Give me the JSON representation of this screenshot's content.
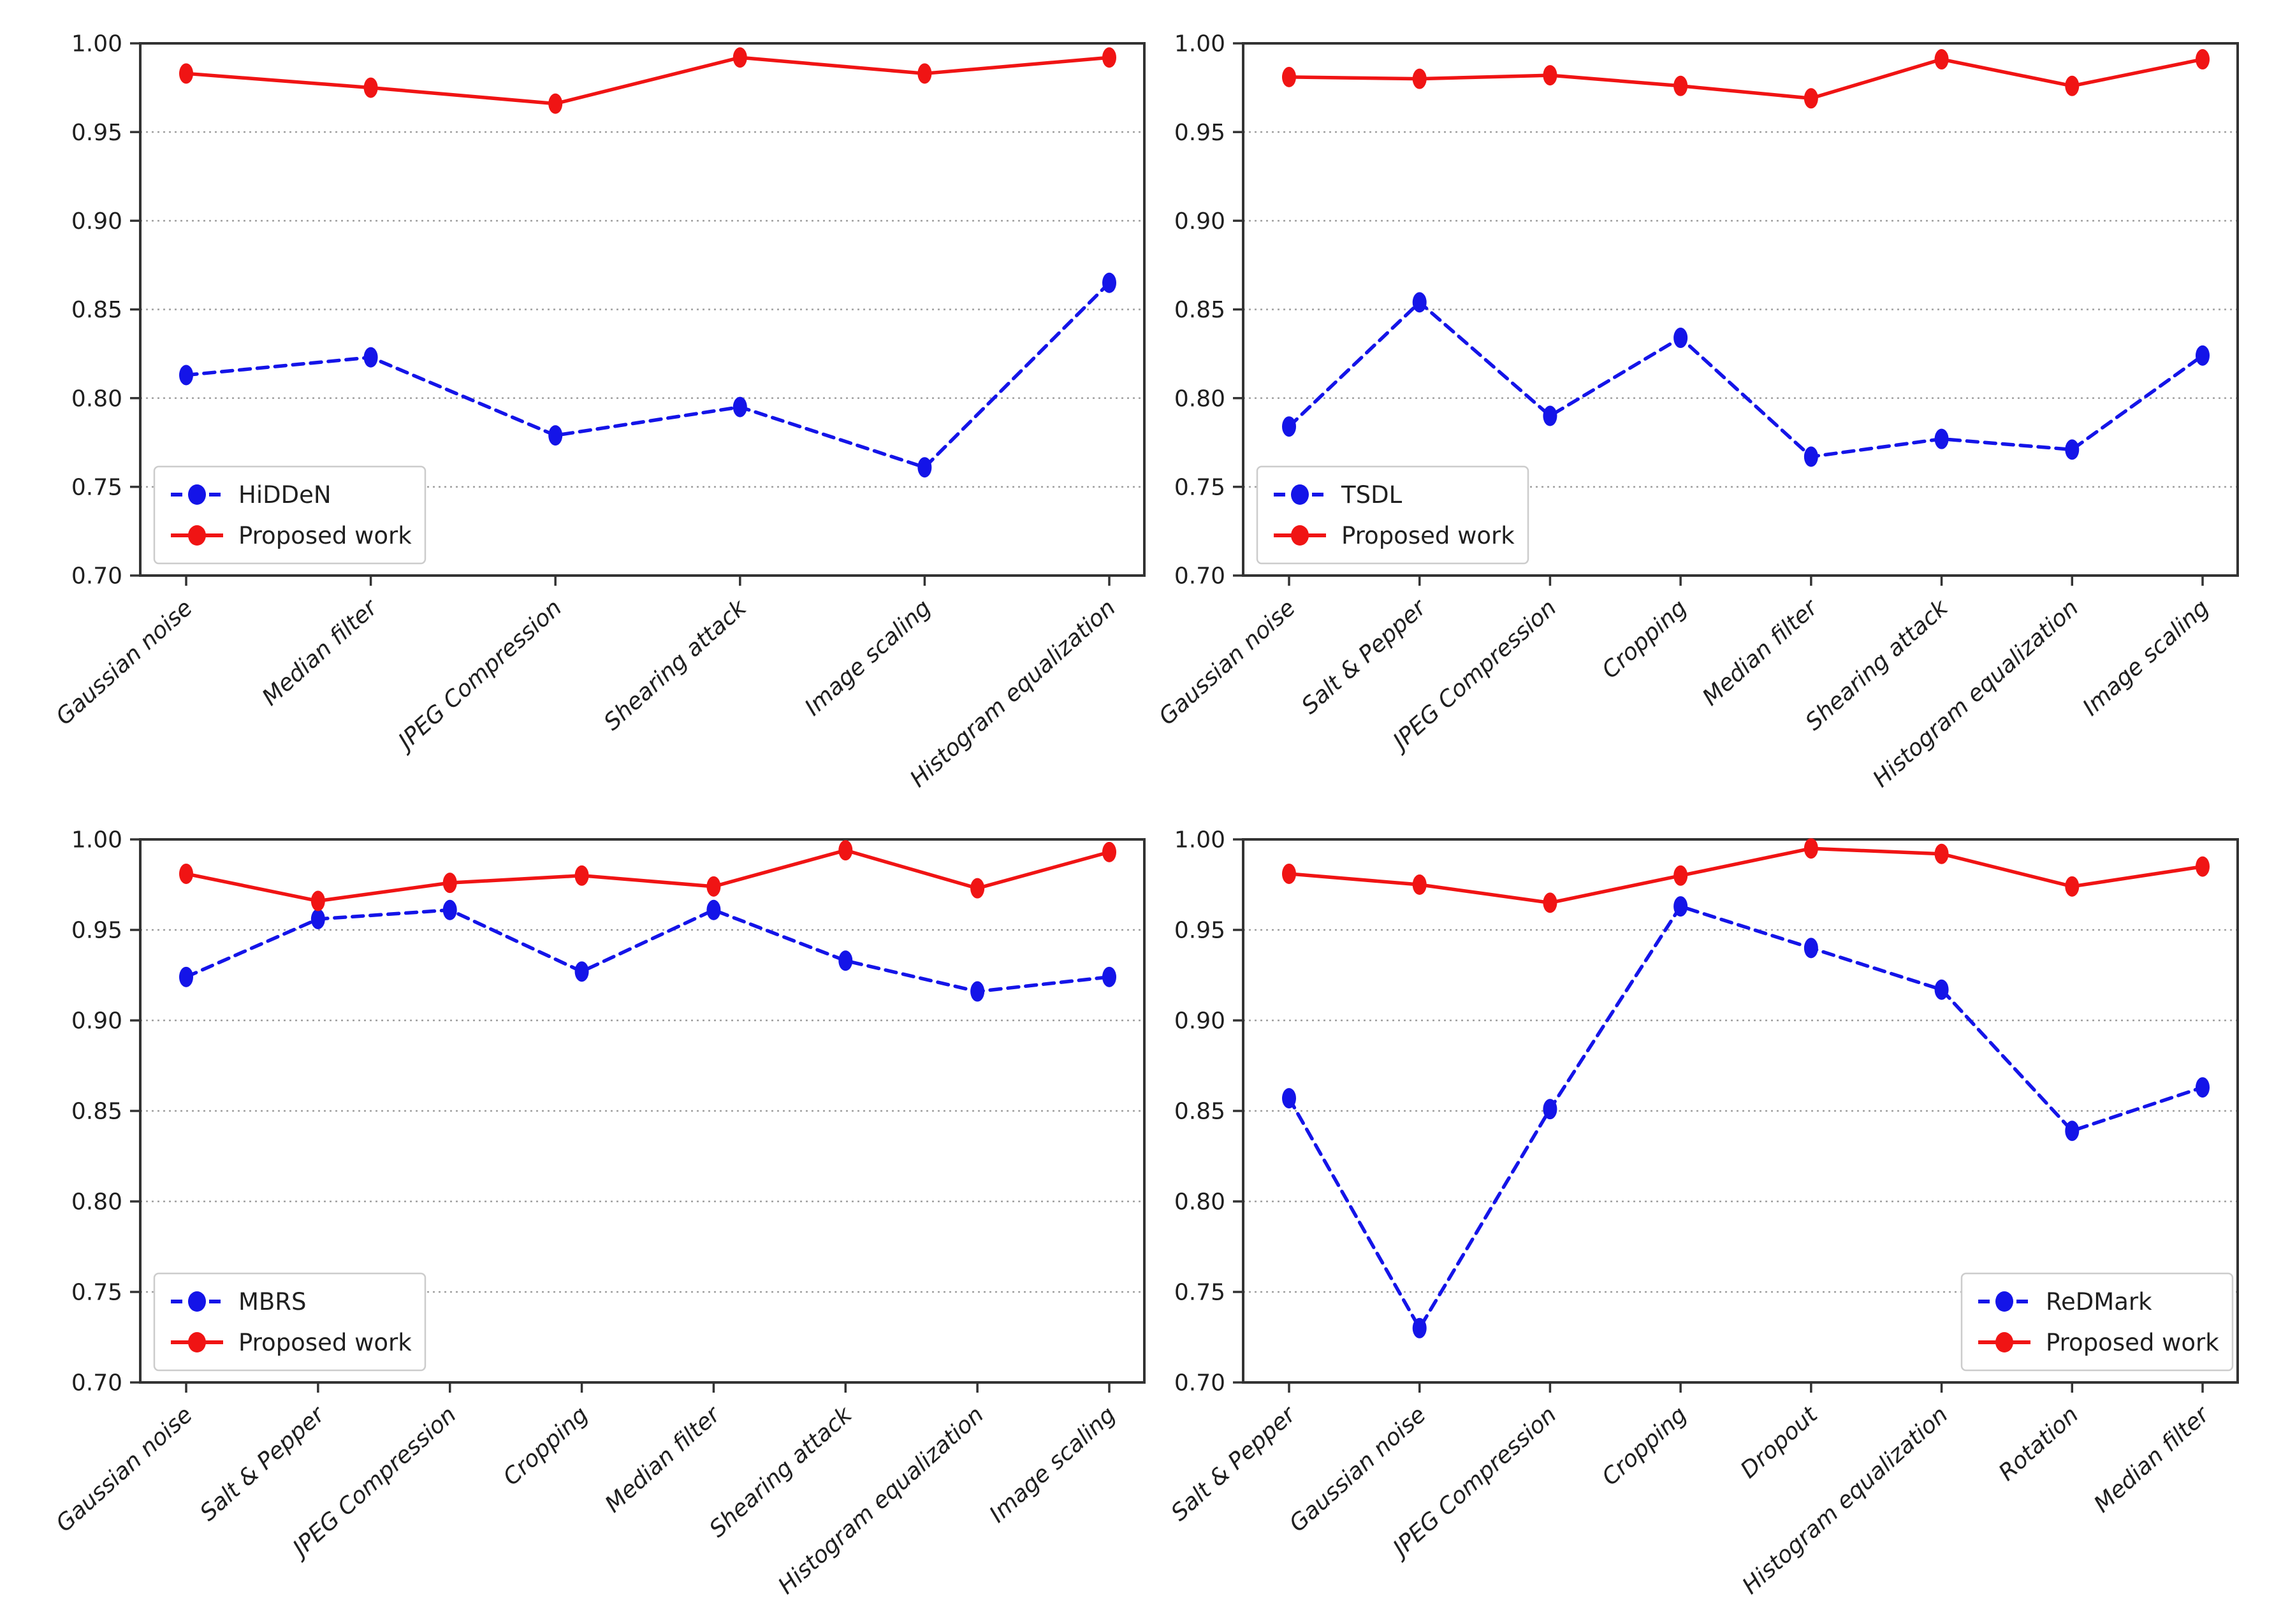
{
  "figure": {
    "background": "#ffffff",
    "description_visible_text_only": ""
  },
  "style": {
    "baseline_series_color": "#1414e8",
    "proposed_series_color": "#f01414",
    "grid_color": "#a0a0a0",
    "axis_color": "#333333",
    "tick_text_color": "#1f1f1f",
    "legend_border_color": "#cccccc",
    "legend_background": "#ffffff"
  },
  "chart_data": [
    {
      "type": "line",
      "position": "top-left",
      "categories": [
        "Gaussian noise",
        "Median filter",
        "JPEG Compression",
        "Shearing attack",
        "Image scaling",
        "Histogram equalization"
      ],
      "series": [
        {
          "name": "HiDDeN",
          "color_key": "baseline_series_color",
          "line_style": "dashed",
          "marker": "circle",
          "values": [
            0.813,
            0.823,
            0.779,
            0.795,
            0.761,
            0.865
          ]
        },
        {
          "name": "Proposed work",
          "color_key": "proposed_series_color",
          "line_style": "solid",
          "marker": "circle",
          "values": [
            0.983,
            0.975,
            0.966,
            0.992,
            0.983,
            0.992
          ]
        }
      ],
      "ylim": [
        0.7,
        1.0
      ],
      "yticks": [
        0.7,
        0.75,
        0.8,
        0.85,
        0.9,
        0.95,
        1.0
      ],
      "ytick_labels": [
        "0.70",
        "0.75",
        "0.80",
        "0.85",
        "0.90",
        "0.95",
        "1.00"
      ],
      "grid": "horizontal-dashed",
      "legend_position": "lower-left"
    },
    {
      "type": "line",
      "position": "top-right",
      "categories": [
        "Gaussian noise",
        "Salt & Pepper",
        "JPEG Compression",
        "Cropping",
        "Median filter",
        "Shearing attack",
        "Histogram equalization",
        "Image scaling"
      ],
      "series": [
        {
          "name": "TSDL",
          "color_key": "baseline_series_color",
          "line_style": "dashed",
          "marker": "circle",
          "values": [
            0.784,
            0.854,
            0.79,
            0.834,
            0.767,
            0.777,
            0.771,
            0.824
          ]
        },
        {
          "name": "Proposed work",
          "color_key": "proposed_series_color",
          "line_style": "solid",
          "marker": "circle",
          "values": [
            0.981,
            0.98,
            0.982,
            0.976,
            0.969,
            0.991,
            0.976,
            0.991
          ]
        }
      ],
      "ylim": [
        0.7,
        1.0
      ],
      "yticks": [
        0.7,
        0.75,
        0.8,
        0.85,
        0.9,
        0.95,
        1.0
      ],
      "ytick_labels": [
        "0.70",
        "0.75",
        "0.80",
        "0.85",
        "0.90",
        "0.95",
        "1.00"
      ],
      "grid": "horizontal-dashed",
      "legend_position": "lower-left"
    },
    {
      "type": "line",
      "position": "bottom-left",
      "categories": [
        "Gaussian noise",
        "Salt & Pepper",
        "JPEG Compression",
        "Cropping",
        "Median filter",
        "Shearing attack",
        "Histogram equalization",
        "Image scaling"
      ],
      "series": [
        {
          "name": "MBRS",
          "color_key": "baseline_series_color",
          "line_style": "dashed",
          "marker": "circle",
          "values": [
            0.924,
            0.956,
            0.961,
            0.927,
            0.961,
            0.933,
            0.916,
            0.924
          ]
        },
        {
          "name": "Proposed work",
          "color_key": "proposed_series_color",
          "line_style": "solid",
          "marker": "circle",
          "values": [
            0.981,
            0.966,
            0.976,
            0.98,
            0.974,
            0.994,
            0.973,
            0.993
          ]
        }
      ],
      "ylim": [
        0.7,
        1.0
      ],
      "yticks": [
        0.7,
        0.75,
        0.8,
        0.85,
        0.9,
        0.95,
        1.0
      ],
      "ytick_labels": [
        "0.70",
        "0.75",
        "0.80",
        "0.85",
        "0.90",
        "0.95",
        "1.00"
      ],
      "grid": "horizontal-dashed",
      "legend_position": "lower-left"
    },
    {
      "type": "line",
      "position": "bottom-right",
      "categories": [
        "Salt & Pepper",
        "Gaussian noise",
        "JPEG Compression",
        "Cropping",
        "Dropout",
        "Histogram equalization",
        "Rotation",
        "Median filter"
      ],
      "series": [
        {
          "name": "ReDMark",
          "color_key": "baseline_series_color",
          "line_style": "dashed",
          "marker": "circle",
          "values": [
            0.857,
            0.73,
            0.851,
            0.963,
            0.94,
            0.917,
            0.839,
            0.863
          ]
        },
        {
          "name": "Proposed work",
          "color_key": "proposed_series_color",
          "line_style": "solid",
          "marker": "circle",
          "values": [
            0.981,
            0.975,
            0.965,
            0.98,
            0.995,
            0.992,
            0.974,
            0.985
          ]
        }
      ],
      "ylim": [
        0.7,
        1.0
      ],
      "yticks": [
        0.7,
        0.75,
        0.8,
        0.85,
        0.9,
        0.95,
        1.0
      ],
      "ytick_labels": [
        "0.70",
        "0.75",
        "0.80",
        "0.85",
        "0.90",
        "0.95",
        "1.00"
      ],
      "grid": "horizontal-dashed",
      "legend_position": "lower-right"
    }
  ]
}
